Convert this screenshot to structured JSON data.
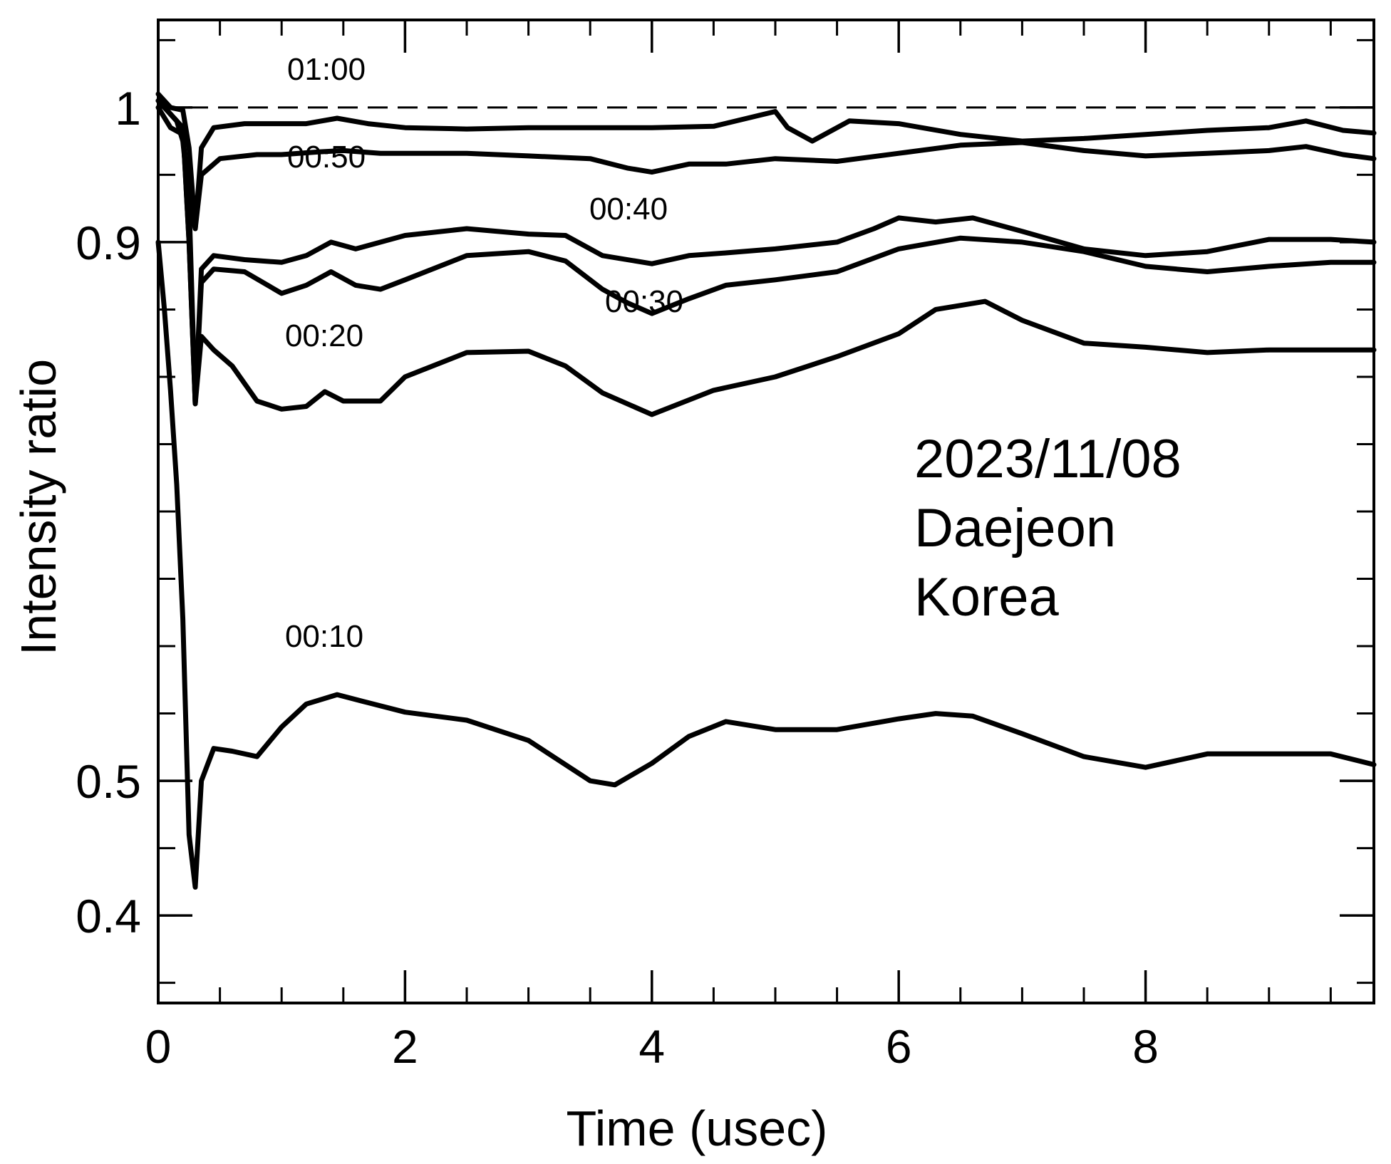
{
  "chart_data": {
    "type": "line",
    "title": "",
    "xlabel": "Time (usec)",
    "ylabel": "Intensity ratio",
    "xlim": [
      0,
      9.85
    ],
    "ylim": [
      0.335,
      1.065
    ],
    "x_ticks": [
      0,
      2,
      4,
      6,
      8
    ],
    "x_tick_labels": [
      "0",
      "2",
      "4",
      "6",
      "8"
    ],
    "y_ticks": [
      0.4,
      0.5,
      0.9,
      1.0
    ],
    "y_tick_labels": [
      "0.4",
      "0.5",
      "0.9",
      "1"
    ],
    "x_minor_step": 0.5,
    "y_minor_step": 0.05,
    "reference_line": {
      "y": 1.0,
      "style": "dashed"
    },
    "annotation": [
      "2023/11/08",
      "Daejeon",
      "Korea"
    ],
    "series": [
      {
        "name": "01:00",
        "x": [
          0,
          0.1,
          0.2,
          0.25,
          0.3,
          0.35,
          0.45,
          0.7,
          1.0,
          1.2,
          1.45,
          1.7,
          2.0,
          2.5,
          3.0,
          3.5,
          4.0,
          4.5,
          5.0,
          5.1,
          5.3,
          5.6,
          6.0,
          6.5,
          7.0,
          7.5,
          8.0,
          8.5,
          9.0,
          9.3,
          9.6,
          9.85
        ],
        "y": [
          1.01,
          1.0,
          0.998,
          0.97,
          0.91,
          0.97,
          0.985,
          0.988,
          0.988,
          0.988,
          0.992,
          0.988,
          0.985,
          0.984,
          0.985,
          0.985,
          0.985,
          0.986,
          0.997,
          0.985,
          0.975,
          0.99,
          0.988,
          0.98,
          0.975,
          0.977,
          0.98,
          0.983,
          0.985,
          0.99,
          0.983,
          0.981
        ]
      },
      {
        "name": "00:50",
        "x": [
          0,
          0.1,
          0.2,
          0.25,
          0.3,
          0.35,
          0.5,
          0.8,
          1.0,
          1.3,
          1.5,
          1.8,
          2.0,
          2.5,
          3.0,
          3.5,
          3.8,
          4.0,
          4.3,
          4.6,
          5.0,
          5.5,
          6.0,
          6.5,
          7.0,
          7.5,
          8.0,
          8.5,
          9.0,
          9.3,
          9.6,
          9.85
        ],
        "y": [
          1.0,
          0.985,
          0.98,
          0.93,
          0.91,
          0.95,
          0.962,
          0.965,
          0.965,
          0.967,
          0.968,
          0.966,
          0.966,
          0.966,
          0.964,
          0.962,
          0.955,
          0.952,
          0.958,
          0.958,
          0.962,
          0.96,
          0.966,
          0.972,
          0.974,
          0.968,
          0.964,
          0.966,
          0.968,
          0.971,
          0.965,
          0.962
        ]
      },
      {
        "name": "00:40",
        "x": [
          0,
          0.1,
          0.2,
          0.25,
          0.3,
          0.35,
          0.45,
          0.7,
          1.0,
          1.2,
          1.4,
          1.6,
          2.0,
          2.5,
          3.0,
          3.3,
          3.6,
          4.0,
          4.3,
          4.6,
          5.0,
          5.5,
          5.8,
          6.0,
          6.3,
          6.6,
          7.0,
          7.5,
          8.0,
          8.5,
          9.0,
          9.5,
          9.85
        ],
        "y": [
          1.005,
          0.995,
          0.985,
          0.9,
          0.78,
          0.88,
          0.89,
          0.887,
          0.885,
          0.89,
          0.9,
          0.895,
          0.905,
          0.91,
          0.906,
          0.905,
          0.89,
          0.884,
          0.89,
          0.892,
          0.895,
          0.9,
          0.91,
          0.918,
          0.915,
          0.918,
          0.908,
          0.895,
          0.89,
          0.893,
          0.902,
          0.902,
          0.9
        ]
      },
      {
        "name": "00:30",
        "x": [
          0,
          0.1,
          0.2,
          0.25,
          0.3,
          0.35,
          0.45,
          0.7,
          1.0,
          1.2,
          1.4,
          1.6,
          1.8,
          2.0,
          2.5,
          3.0,
          3.3,
          3.6,
          3.8,
          4.0,
          4.3,
          4.6,
          5.0,
          5.5,
          6.0,
          6.5,
          7.0,
          7.5,
          8.0,
          8.5,
          9.0,
          9.5,
          9.85
        ],
        "y": [
          1.005,
          0.995,
          0.985,
          0.9,
          0.78,
          0.87,
          0.88,
          0.878,
          0.862,
          0.868,
          0.878,
          0.868,
          0.865,
          0.872,
          0.89,
          0.893,
          0.886,
          0.865,
          0.855,
          0.847,
          0.858,
          0.868,
          0.872,
          0.878,
          0.895,
          0.903,
          0.9,
          0.893,
          0.882,
          0.878,
          0.882,
          0.885,
          0.885
        ]
      },
      {
        "name": "00:20",
        "x": [
          0,
          0.05,
          0.1,
          0.15,
          0.2,
          0.25,
          0.3,
          0.35,
          0.45,
          0.6,
          0.8,
          1.0,
          1.2,
          1.35,
          1.5,
          1.8,
          2.0,
          2.5,
          3.0,
          3.3,
          3.6,
          4.0,
          4.5,
          5.0,
          5.5,
          6.0,
          6.3,
          6.7,
          7.0,
          7.5,
          8.0,
          8.5,
          9.0,
          9.5,
          9.85
        ],
        "y": [
          1.005,
          1.0,
          0.995,
          0.99,
          0.975,
          0.93,
          0.78,
          0.83,
          0.82,
          0.808,
          0.782,
          0.776,
          0.778,
          0.789,
          0.782,
          0.782,
          0.8,
          0.818,
          0.819,
          0.808,
          0.788,
          0.772,
          0.79,
          0.8,
          0.815,
          0.832,
          0.85,
          0.856,
          0.842,
          0.825,
          0.822,
          0.818,
          0.82,
          0.82,
          0.82
        ]
      },
      {
        "name": "00:10",
        "x": [
          0,
          0.05,
          0.1,
          0.15,
          0.2,
          0.25,
          0.3,
          0.35,
          0.45,
          0.6,
          0.8,
          1.0,
          1.2,
          1.45,
          1.7,
          2.0,
          2.5,
          3.0,
          3.5,
          3.7,
          4.0,
          4.3,
          4.6,
          5.0,
          5.5,
          6.0,
          6.3,
          6.6,
          7.0,
          7.5,
          8.0,
          8.5,
          9.0,
          9.5,
          9.85
        ],
        "y": [
          0.9,
          0.85,
          0.79,
          0.72,
          0.62,
          0.46,
          0.421,
          0.5,
          0.524,
          0.522,
          0.518,
          0.54,
          0.557,
          0.564,
          0.558,
          0.551,
          0.545,
          0.53,
          0.5,
          0.497,
          0.513,
          0.533,
          0.544,
          0.538,
          0.538,
          0.546,
          0.55,
          0.548,
          0.535,
          0.518,
          0.51,
          0.52,
          0.52,
          0.52,
          0.512
        ]
      }
    ]
  }
}
